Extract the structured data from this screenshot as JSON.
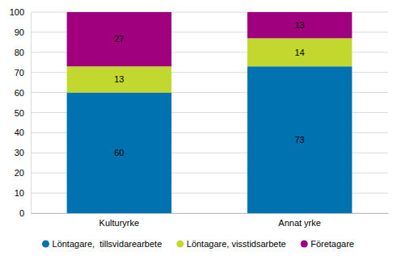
{
  "chart_data": {
    "type": "bar",
    "stacked": true,
    "data_labels": true,
    "grid": true,
    "legend": "bottom",
    "categories": [
      "Kulturyrke",
      "Annat yrke"
    ],
    "series": [
      {
        "name": "Löntagare,  tillsvidarearbete",
        "color": "#0072b0",
        "values": [
          60,
          73
        ]
      },
      {
        "name": "Löntagare, visstidsarbete",
        "color": "#c2d82e",
        "values": [
          13,
          14
        ]
      },
      {
        "name": "Företagare",
        "color": "#a0007e",
        "values": [
          27,
          13
        ]
      }
    ],
    "ylim": [
      0,
      100
    ],
    "yticks": [
      0,
      10,
      20,
      30,
      40,
      50,
      60,
      70,
      80,
      90,
      100
    ]
  }
}
